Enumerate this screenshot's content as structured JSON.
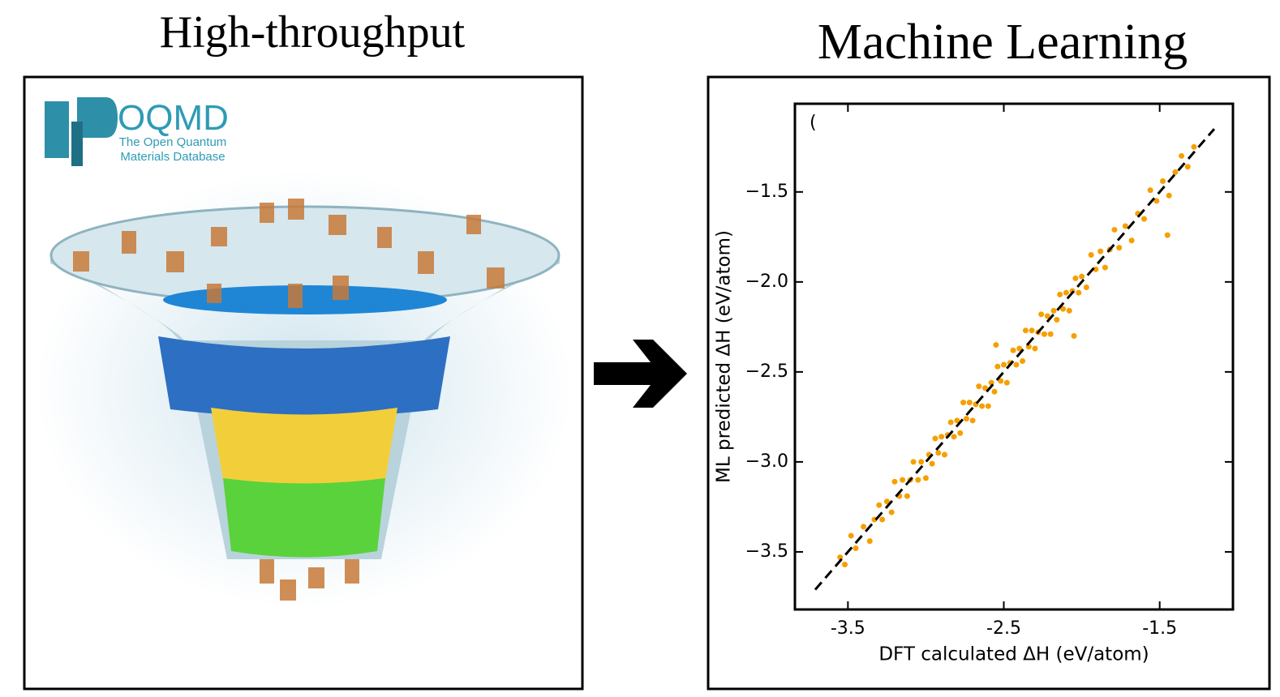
{
  "left_panel": {
    "title": "High-throughput",
    "logo": {
      "name": "OQMD",
      "line1": "The Open Quantum",
      "line2": "Materials Database"
    }
  },
  "right_panel": {
    "title": "Machine Learning"
  },
  "chart_data": {
    "type": "scatter",
    "color": "#f5a000",
    "annotation": "(",
    "x_label": "DFT calculated ΔH (eV/atom)",
    "y_label": "ML predicted ΔH (eV/atom)",
    "xlim": [
      -3.84,
      -1.03
    ],
    "ylim": [
      -3.82,
      -1.01
    ],
    "xticks": [
      -3.5,
      -2.5,
      -1.5
    ],
    "yticks": [
      {
        "value": -1.5,
        "label": "−1.5"
      },
      {
        "value": -2.0,
        "label": "−2.0"
      },
      {
        "value": -2.5,
        "label": "−2.5"
      },
      {
        "value": -3.0,
        "label": "−3.0"
      },
      {
        "value": -3.5,
        "label": "−3.5"
      }
    ],
    "reference_line": {
      "x": [
        -3.71,
        -1.15
      ],
      "y": [
        -3.71,
        -1.15
      ],
      "color": "#000000"
    },
    "x": [
      -3.55,
      -3.52,
      -3.48,
      -3.45,
      -3.4,
      -3.36,
      -3.33,
      -3.3,
      -3.28,
      -3.25,
      -3.22,
      -3.2,
      -3.17,
      -3.15,
      -3.12,
      -3.1,
      -3.08,
      -3.05,
      -3.03,
      -3.0,
      -2.98,
      -2.96,
      -2.94,
      -2.92,
      -2.9,
      -2.88,
      -2.86,
      -2.84,
      -2.82,
      -2.8,
      -2.78,
      -2.76,
      -2.74,
      -2.72,
      -2.7,
      -2.68,
      -2.66,
      -2.64,
      -2.62,
      -2.6,
      -2.58,
      -2.56,
      -2.54,
      -2.52,
      -2.5,
      -2.48,
      -2.46,
      -2.44,
      -2.42,
      -2.4,
      -2.38,
      -2.36,
      -2.34,
      -2.32,
      -2.3,
      -2.28,
      -2.26,
      -2.24,
      -2.22,
      -2.2,
      -2.18,
      -2.16,
      -2.14,
      -2.12,
      -2.1,
      -2.08,
      -2.06,
      -2.04,
      -2.02,
      -2.0,
      -1.97,
      -1.94,
      -1.91,
      -1.88,
      -1.85,
      -1.82,
      -1.79,
      -1.76,
      -1.72,
      -1.68,
      -1.64,
      -1.6,
      -1.56,
      -1.52,
      -1.48,
      -1.44,
      -1.4,
      -1.36,
      -1.32,
      -1.28,
      -1.45,
      -2.05,
      -2.55
    ],
    "values": [
      -3.53,
      -3.57,
      -3.41,
      -3.48,
      -3.36,
      -3.44,
      -3.32,
      -3.24,
      -3.32,
      -3.22,
      -3.28,
      -3.11,
      -3.19,
      -3.1,
      -3.19,
      -3.1,
      -3.0,
      -3.1,
      -3.0,
      -3.09,
      -2.96,
      -3.01,
      -2.87,
      -2.95,
      -2.86,
      -2.96,
      -2.85,
      -2.78,
      -2.86,
      -2.77,
      -2.84,
      -2.67,
      -2.76,
      -2.67,
      -2.77,
      -2.68,
      -2.58,
      -2.69,
      -2.59,
      -2.69,
      -2.56,
      -2.61,
      -2.47,
      -2.55,
      -2.46,
      -2.56,
      -2.45,
      -2.38,
      -2.46,
      -2.37,
      -2.44,
      -2.27,
      -2.36,
      -2.27,
      -2.37,
      -2.28,
      -2.18,
      -2.29,
      -2.19,
      -2.29,
      -2.16,
      -2.21,
      -2.07,
      -2.15,
      -2.06,
      -2.16,
      -2.05,
      -1.98,
      -2.06,
      -1.97,
      -2.03,
      -1.85,
      -1.93,
      -1.83,
      -1.92,
      -1.82,
      -1.71,
      -1.81,
      -1.69,
      -1.77,
      -1.62,
      -1.65,
      -1.49,
      -1.55,
      -1.44,
      -1.52,
      -1.39,
      -1.3,
      -1.36,
      -1.25,
      -1.74,
      -2.3,
      -2.35
    ]
  }
}
